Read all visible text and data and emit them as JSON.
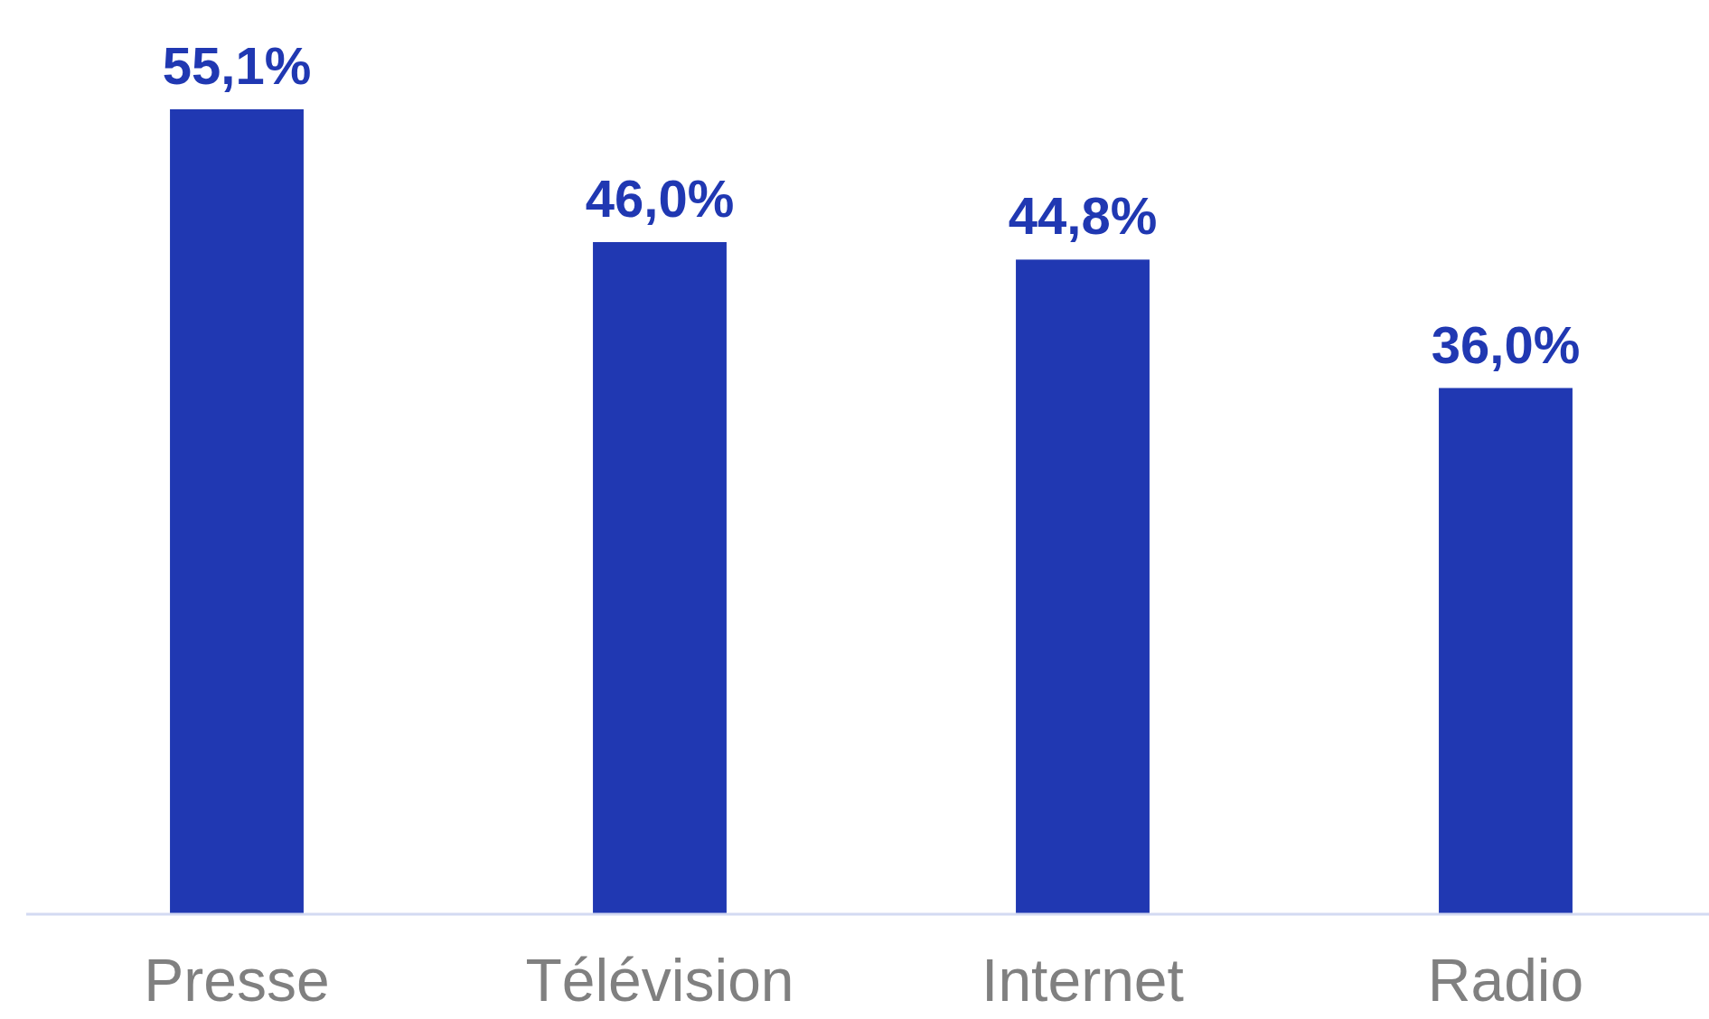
{
  "chart_data": {
    "type": "bar",
    "categories": [
      "Presse",
      "Télévision",
      "Internet",
      "Radio"
    ],
    "series": [
      {
        "color": "#2038b2",
        "values": [
          55.1,
          46.0,
          44.8,
          36.0
        ],
        "value_labels": [
          "55,1%",
          "46,0%",
          "44,8%",
          "36,0%"
        ]
      }
    ]
  }
}
